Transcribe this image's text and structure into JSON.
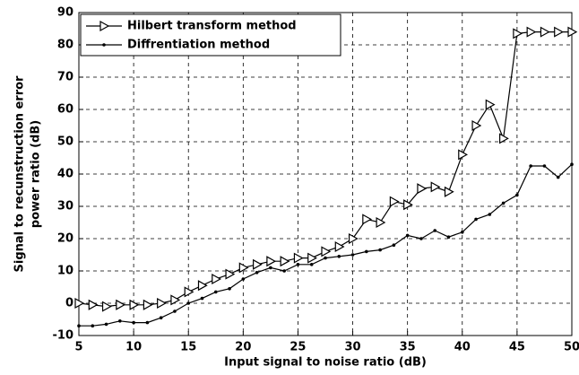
{
  "chart_data": {
    "type": "line",
    "xlabel": "Input signal to noise ratio (dB)",
    "ylabel": [
      "Signal to recunstruction error",
      "power ratio (dB)"
    ],
    "x": [
      5,
      6.25,
      7.5,
      8.75,
      10,
      11.25,
      12.5,
      13.75,
      15,
      16.25,
      17.5,
      18.75,
      20,
      21.25,
      22.5,
      23.75,
      25,
      26.25,
      27.5,
      28.75,
      30,
      31.25,
      32.5,
      33.75,
      35,
      36.25,
      37.5,
      38.75,
      40,
      41.25,
      42.5,
      43.75,
      45,
      46.25,
      47.5,
      48.75,
      50
    ],
    "series": [
      {
        "name": "Hilbert transform method",
        "color": "#000000",
        "marker": "triangle-right",
        "values": [
          0,
          -0.5,
          -1,
          -0.5,
          -0.5,
          -0.5,
          0,
          1,
          3.5,
          5.5,
          7.5,
          9,
          11,
          12,
          13,
          13,
          14,
          14,
          16,
          17.5,
          20,
          26,
          25,
          31.5,
          30.5,
          35.5,
          36,
          34.5,
          46,
          55,
          61.5,
          51,
          83.5,
          84,
          84,
          84,
          84
        ]
      },
      {
        "name": "Diffrentiation method",
        "color": "#000000",
        "marker": "dot",
        "values": [
          -7,
          -7,
          -6.5,
          -5.5,
          -6,
          -6,
          -4.5,
          -2.5,
          0,
          1.5,
          3.5,
          4.5,
          7.5,
          9.5,
          11,
          10,
          12,
          12,
          14,
          14.5,
          15,
          16,
          16.5,
          18,
          21,
          20,
          22.5,
          20.5,
          22,
          26,
          27.5,
          31,
          33.5,
          42.5,
          42.5,
          39,
          43
        ]
      }
    ],
    "xlim": [
      5,
      50
    ],
    "xticks": [
      5,
      10,
      15,
      20,
      25,
      30,
      35,
      40,
      45,
      50
    ],
    "ylim": [
      -10,
      90
    ],
    "yticks": [
      -10,
      0,
      10,
      20,
      30,
      40,
      50,
      60,
      70,
      80,
      90
    ],
    "grid": true,
    "legend": "upper-left"
  }
}
